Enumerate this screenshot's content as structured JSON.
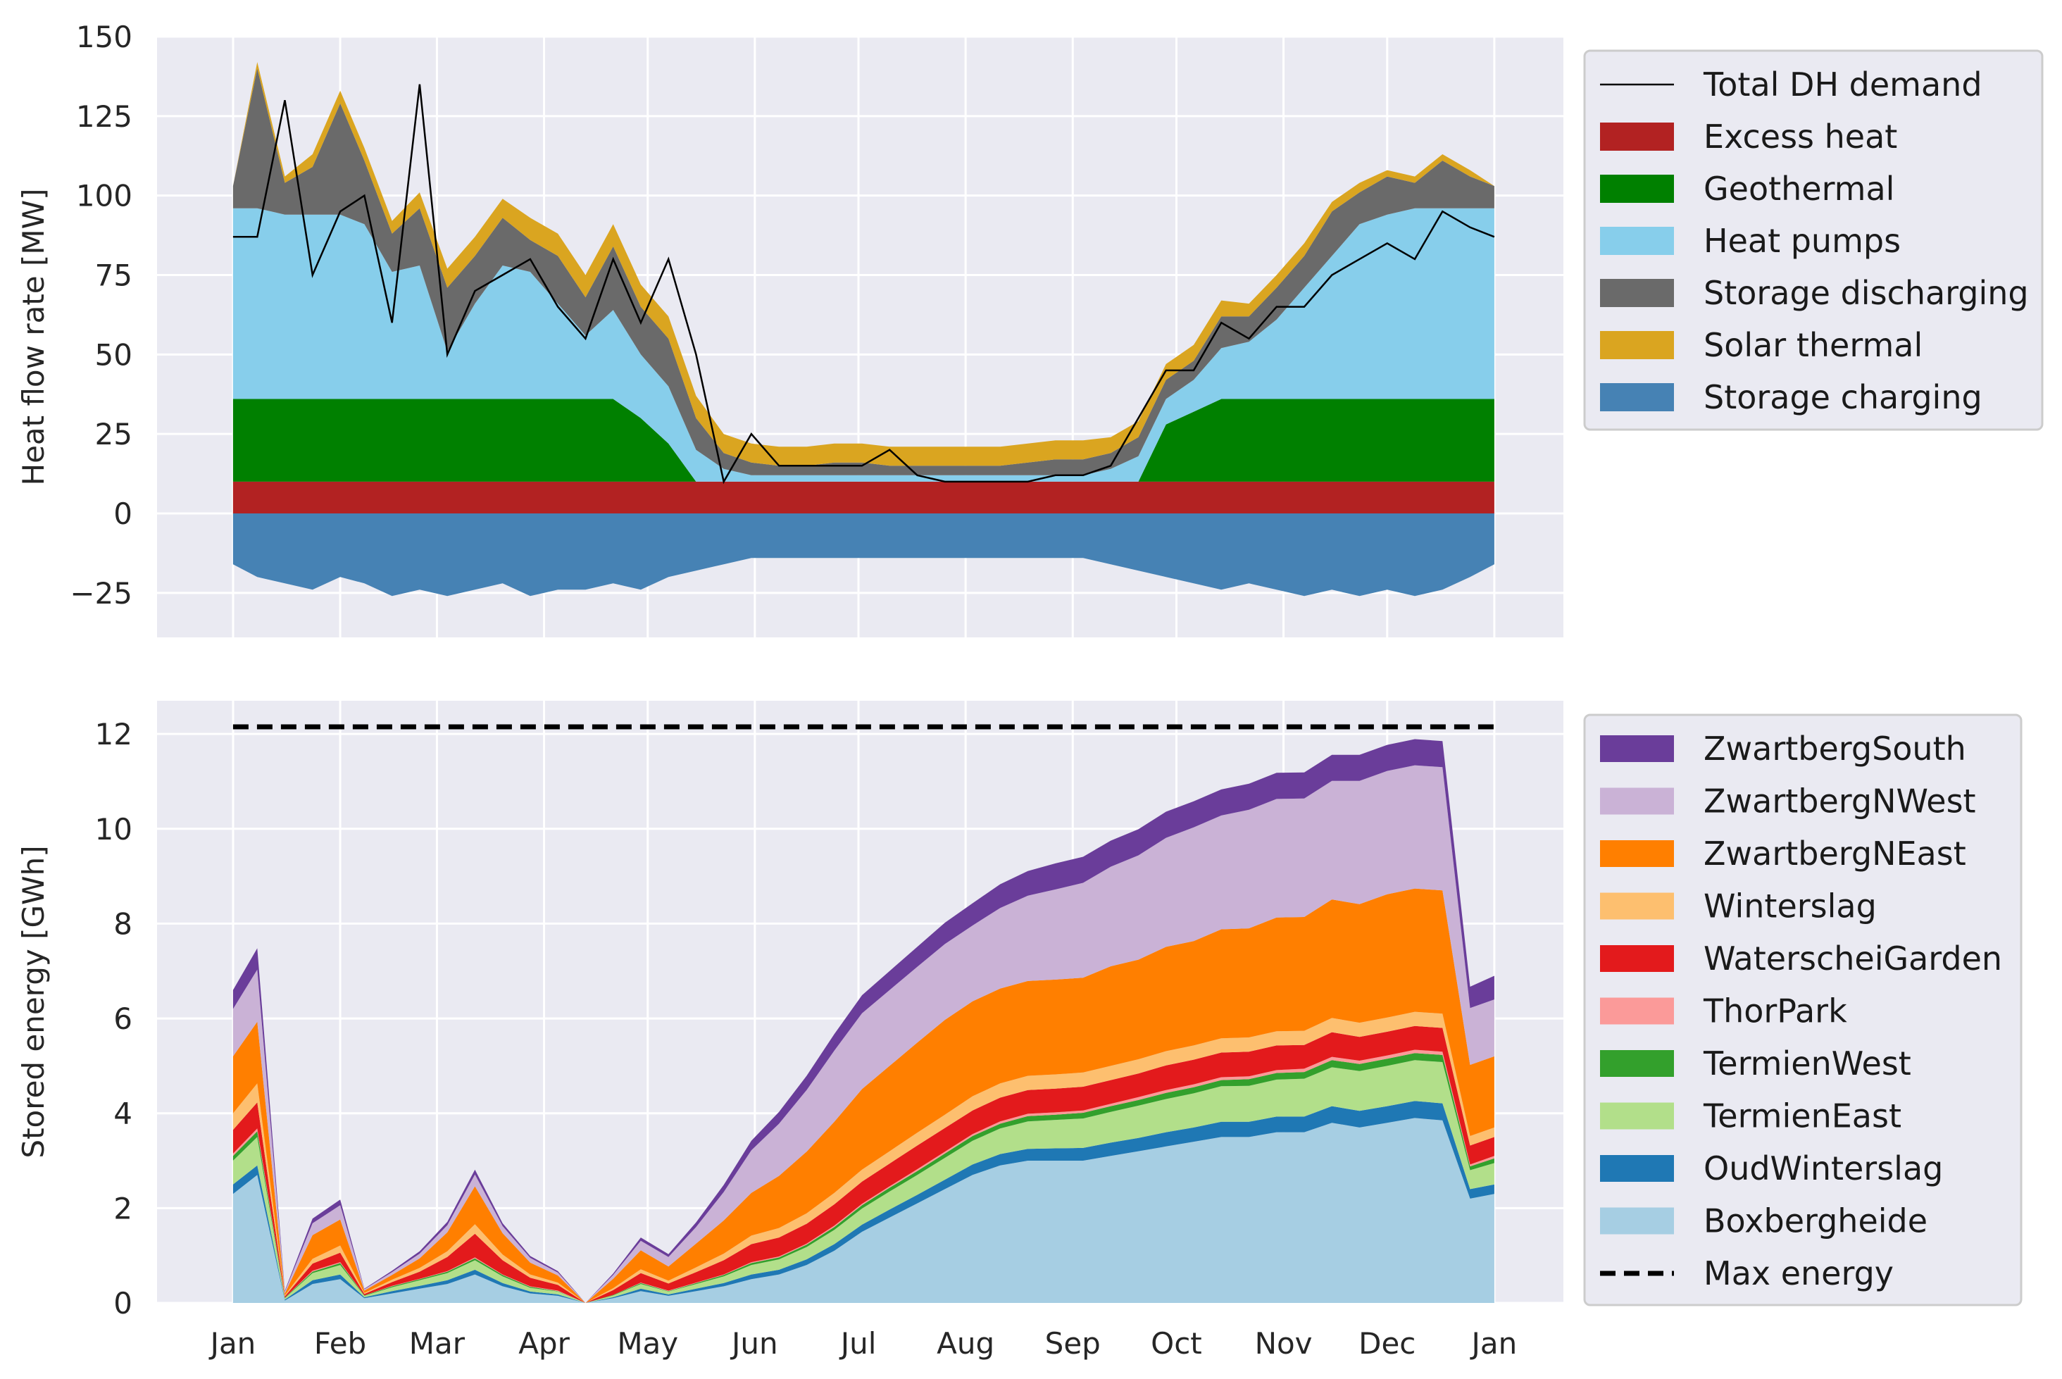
{
  "chart_data": [
    {
      "type": "area",
      "stacked": true,
      "ylabel": "Heat flow rate [MW]",
      "ylim": [
        -39,
        150
      ],
      "yticks": [
        -25,
        0,
        25,
        50,
        75,
        100,
        125,
        150
      ],
      "ytick_labels": [
        "−25",
        "0",
        "25",
        "50",
        "75",
        "100",
        "125",
        "150"
      ],
      "grid": true,
      "legend_placement": "outside-right",
      "x_unit": "day-of-year",
      "x": [
        0,
        7,
        15,
        23,
        31,
        38,
        46,
        54,
        62,
        70,
        78,
        86,
        94,
        102,
        110,
        118,
        126,
        134,
        142,
        150,
        158,
        166,
        174,
        182,
        190,
        198,
        206,
        214,
        222,
        230,
        238,
        246,
        254,
        262,
        270,
        278,
        286,
        294,
        302,
        310,
        318,
        326,
        334,
        342,
        350,
        358,
        365
      ],
      "series": [
        {
          "name": "Excess heat",
          "color": "#b22222",
          "values": [
            10,
            10,
            10,
            10,
            10,
            10,
            10,
            10,
            10,
            10,
            10,
            10,
            10,
            10,
            10,
            10,
            10,
            10,
            10,
            10,
            10,
            10,
            10,
            10,
            10,
            10,
            10,
            10,
            10,
            10,
            10,
            10,
            10,
            10,
            10,
            10,
            10,
            10,
            10,
            10,
            10,
            10,
            10,
            10,
            10,
            10,
            10
          ]
        },
        {
          "name": "Geothermal",
          "color": "#008000",
          "values": [
            26,
            26,
            26,
            26,
            26,
            26,
            26,
            26,
            26,
            26,
            26,
            26,
            26,
            26,
            26,
            20,
            12,
            0,
            0,
            0,
            0,
            0,
            0,
            0,
            0,
            0,
            0,
            0,
            0,
            0,
            0,
            0,
            0,
            0,
            18,
            22,
            26,
            26,
            26,
            26,
            26,
            26,
            26,
            26,
            26,
            26,
            26
          ]
        },
        {
          "name": "Heat pumps",
          "color": "#87ceeb",
          "values": [
            60,
            60,
            58,
            58,
            58,
            55,
            40,
            42,
            15,
            30,
            42,
            40,
            30,
            20,
            28,
            20,
            18,
            10,
            4,
            2,
            2,
            2,
            2,
            2,
            2,
            2,
            2,
            2,
            2,
            2,
            2,
            2,
            4,
            8,
            8,
            10,
            16,
            18,
            25,
            35,
            45,
            55,
            58,
            60,
            60,
            60,
            60
          ]
        },
        {
          "name": "Storage discharging",
          "color": "#6a6a6a",
          "values": [
            7,
            44,
            10,
            15,
            35,
            20,
            12,
            18,
            20,
            15,
            15,
            10,
            15,
            12,
            20,
            15,
            15,
            10,
            5,
            4,
            3,
            3,
            4,
            4,
            3,
            3,
            3,
            3,
            3,
            4,
            5,
            5,
            5,
            6,
            6,
            6,
            10,
            8,
            10,
            10,
            14,
            10,
            12,
            8,
            15,
            10,
            7
          ]
        },
        {
          "name": "Solar thermal",
          "color": "#daa520",
          "values": [
            0,
            2,
            2,
            4,
            4,
            4,
            4,
            5,
            6,
            6,
            6,
            7,
            7,
            7,
            7,
            7,
            7,
            7,
            6,
            6,
            6,
            6,
            6,
            6,
            6,
            6,
            6,
            6,
            6,
            6,
            6,
            6,
            5,
            5,
            5,
            5,
            5,
            4,
            4,
            4,
            3,
            3,
            2,
            2,
            2,
            2,
            0
          ]
        },
        {
          "name": "Storage charging",
          "color": "#4682b4",
          "values": [
            -16,
            -20,
            -22,
            -24,
            -20,
            -22,
            -26,
            -24,
            -26,
            -24,
            -22,
            -26,
            -24,
            -24,
            -22,
            -24,
            -20,
            -18,
            -16,
            -14,
            -14,
            -14,
            -14,
            -14,
            -14,
            -14,
            -14,
            -14,
            -14,
            -14,
            -14,
            -14,
            -16,
            -18,
            -20,
            -22,
            -24,
            -22,
            -24,
            -26,
            -24,
            -26,
            -24,
            -26,
            -24,
            -20,
            -16
          ]
        }
      ],
      "lines": [
        {
          "name": "Total DH demand",
          "color": "#000000",
          "values": [
            87,
            87,
            130,
            75,
            95,
            100,
            60,
            135,
            50,
            70,
            75,
            80,
            65,
            55,
            80,
            60,
            80,
            50,
            10,
            25,
            15,
            15,
            15,
            15,
            20,
            12,
            10,
            10,
            10,
            10,
            12,
            12,
            15,
            30,
            45,
            45,
            60,
            55,
            65,
            65,
            75,
            80,
            85,
            80,
            95,
            90,
            87
          ]
        }
      ],
      "legend": [
        "Total DH demand",
        "Excess heat",
        "Geothermal",
        "Heat pumps",
        "Storage discharging",
        "Solar thermal",
        "Storage charging"
      ]
    },
    {
      "type": "area",
      "stacked": true,
      "ylabel": "Stored energy [GWh]",
      "ylim": [
        0,
        12.7
      ],
      "yticks": [
        0,
        2,
        4,
        6,
        8,
        10,
        12
      ],
      "ytick_labels": [
        "0",
        "2",
        "4",
        "6",
        "8",
        "10",
        "12"
      ],
      "grid": true,
      "legend_placement": "outside-right",
      "x_unit": "day-of-year",
      "xticks": [
        0,
        31,
        59,
        90,
        120,
        151,
        181,
        212,
        243,
        273,
        304,
        334,
        365
      ],
      "xtick_labels": [
        "Jan",
        "Feb",
        "Mar",
        "Apr",
        "May",
        "Jun",
        "Jul",
        "Aug",
        "Sep",
        "Oct",
        "Nov",
        "Dec",
        "Jan"
      ],
      "x": [
        0,
        7,
        15,
        23,
        31,
        38,
        46,
        54,
        62,
        70,
        78,
        86,
        94,
        102,
        110,
        118,
        126,
        134,
        142,
        150,
        158,
        166,
        174,
        182,
        190,
        198,
        206,
        214,
        222,
        230,
        238,
        246,
        254,
        262,
        270,
        278,
        286,
        294,
        302,
        310,
        318,
        326,
        334,
        342,
        350,
        358,
        365
      ],
      "series": [
        {
          "name": "Boxbergheide",
          "color": "#a6cee3",
          "values": [
            2.3,
            2.7,
            0.05,
            0.4,
            0.5,
            0.1,
            0.2,
            0.3,
            0.4,
            0.6,
            0.35,
            0.2,
            0.15,
            0.0,
            0.1,
            0.25,
            0.15,
            0.25,
            0.35,
            0.5,
            0.6,
            0.8,
            1.1,
            1.5,
            1.8,
            2.1,
            2.4,
            2.7,
            2.9,
            3.0,
            3.0,
            3.0,
            3.1,
            3.2,
            3.3,
            3.4,
            3.5,
            3.5,
            3.6,
            3.6,
            3.8,
            3.7,
            3.8,
            3.9,
            3.85,
            2.2,
            2.3
          ]
        },
        {
          "name": "OudWinterslag",
          "color": "#1f78b4",
          "values": [
            0.2,
            0.2,
            0.02,
            0.08,
            0.1,
            0.02,
            0.05,
            0.06,
            0.08,
            0.1,
            0.07,
            0.04,
            0.03,
            0.0,
            0.02,
            0.05,
            0.03,
            0.05,
            0.07,
            0.1,
            0.1,
            0.12,
            0.14,
            0.15,
            0.17,
            0.18,
            0.2,
            0.22,
            0.24,
            0.25,
            0.26,
            0.27,
            0.28,
            0.28,
            0.3,
            0.3,
            0.32,
            0.32,
            0.33,
            0.33,
            0.35,
            0.35,
            0.35,
            0.36,
            0.36,
            0.2,
            0.2
          ]
        },
        {
          "name": "TermienEast",
          "color": "#b2df8a",
          "values": [
            0.5,
            0.6,
            0.03,
            0.15,
            0.2,
            0.03,
            0.08,
            0.12,
            0.15,
            0.2,
            0.14,
            0.08,
            0.06,
            0.0,
            0.04,
            0.1,
            0.06,
            0.1,
            0.14,
            0.2,
            0.22,
            0.26,
            0.3,
            0.34,
            0.38,
            0.42,
            0.46,
            0.5,
            0.54,
            0.58,
            0.6,
            0.62,
            0.65,
            0.68,
            0.7,
            0.72,
            0.75,
            0.76,
            0.78,
            0.8,
            0.82,
            0.84,
            0.85,
            0.86,
            0.87,
            0.4,
            0.45
          ]
        },
        {
          "name": "TermienWest",
          "color": "#33a02c",
          "values": [
            0.1,
            0.12,
            0.01,
            0.03,
            0.04,
            0.01,
            0.02,
            0.02,
            0.03,
            0.04,
            0.03,
            0.02,
            0.01,
            0.0,
            0.01,
            0.02,
            0.01,
            0.02,
            0.03,
            0.04,
            0.04,
            0.05,
            0.06,
            0.07,
            0.08,
            0.08,
            0.09,
            0.1,
            0.1,
            0.11,
            0.11,
            0.12,
            0.12,
            0.12,
            0.13,
            0.13,
            0.13,
            0.14,
            0.14,
            0.14,
            0.15,
            0.15,
            0.15,
            0.15,
            0.15,
            0.08,
            0.1
          ]
        },
        {
          "name": "ThorPark",
          "color": "#fb9a99",
          "values": [
            0.05,
            0.06,
            0.0,
            0.02,
            0.02,
            0.0,
            0.01,
            0.01,
            0.01,
            0.02,
            0.01,
            0.01,
            0.01,
            0.0,
            0.0,
            0.01,
            0.01,
            0.01,
            0.01,
            0.02,
            0.02,
            0.02,
            0.03,
            0.03,
            0.03,
            0.04,
            0.04,
            0.04,
            0.05,
            0.05,
            0.05,
            0.05,
            0.05,
            0.06,
            0.06,
            0.06,
            0.06,
            0.06,
            0.06,
            0.07,
            0.07,
            0.07,
            0.07,
            0.07,
            0.07,
            0.04,
            0.05
          ]
        },
        {
          "name": "WaterscheiGarden",
          "color": "#e31a1c",
          "values": [
            0.5,
            0.55,
            0.03,
            0.15,
            0.2,
            0.03,
            0.08,
            0.15,
            0.3,
            0.5,
            0.3,
            0.18,
            0.12,
            0.0,
            0.1,
            0.2,
            0.15,
            0.22,
            0.3,
            0.38,
            0.4,
            0.42,
            0.45,
            0.47,
            0.48,
            0.5,
            0.5,
            0.5,
            0.5,
            0.5,
            0.5,
            0.5,
            0.5,
            0.5,
            0.52,
            0.52,
            0.52,
            0.52,
            0.52,
            0.5,
            0.52,
            0.5,
            0.5,
            0.5,
            0.5,
            0.4,
            0.4
          ]
        },
        {
          "name": "Winterslag",
          "color": "#fdbf6f",
          "values": [
            0.35,
            0.4,
            0.02,
            0.1,
            0.15,
            0.02,
            0.05,
            0.08,
            0.12,
            0.2,
            0.12,
            0.07,
            0.05,
            0.0,
            0.04,
            0.08,
            0.06,
            0.1,
            0.14,
            0.18,
            0.2,
            0.22,
            0.24,
            0.25,
            0.26,
            0.27,
            0.28,
            0.3,
            0.3,
            0.3,
            0.3,
            0.3,
            0.3,
            0.3,
            0.3,
            0.3,
            0.3,
            0.3,
            0.3,
            0.3,
            0.3,
            0.3,
            0.3,
            0.3,
            0.3,
            0.2,
            0.2
          ]
        },
        {
          "name": "ZwartbergNEast",
          "color": "#ff7f00",
          "values": [
            1.2,
            1.3,
            0.04,
            0.5,
            0.55,
            0.05,
            0.1,
            0.2,
            0.4,
            0.8,
            0.45,
            0.25,
            0.15,
            0.0,
            0.2,
            0.4,
            0.3,
            0.5,
            0.7,
            0.9,
            1.1,
            1.3,
            1.5,
            1.7,
            1.8,
            1.9,
            2.0,
            2.0,
            2.0,
            2.0,
            2.0,
            2.0,
            2.1,
            2.1,
            2.2,
            2.2,
            2.3,
            2.3,
            2.4,
            2.4,
            2.5,
            2.5,
            2.6,
            2.6,
            2.6,
            1.5,
            1.5
          ]
        },
        {
          "name": "ZwartbergNWest",
          "color": "#cab2d6",
          "values": [
            1.0,
            1.1,
            0.04,
            0.25,
            0.3,
            0.03,
            0.06,
            0.1,
            0.15,
            0.25,
            0.15,
            0.1,
            0.06,
            0.0,
            0.08,
            0.2,
            0.2,
            0.35,
            0.6,
            0.9,
            1.1,
            1.3,
            1.5,
            1.6,
            1.6,
            1.6,
            1.6,
            1.6,
            1.7,
            1.8,
            1.9,
            2.0,
            2.1,
            2.2,
            2.3,
            2.4,
            2.4,
            2.5,
            2.5,
            2.5,
            2.5,
            2.6,
            2.6,
            2.6,
            2.6,
            1.2,
            1.2
          ]
        },
        {
          "name": "ZwartbergSouth",
          "color": "#6a3d9a",
          "values": [
            0.4,
            0.45,
            0.02,
            0.1,
            0.12,
            0.01,
            0.03,
            0.05,
            0.07,
            0.1,
            0.06,
            0.04,
            0.03,
            0.0,
            0.03,
            0.07,
            0.06,
            0.1,
            0.15,
            0.2,
            0.25,
            0.3,
            0.35,
            0.38,
            0.4,
            0.42,
            0.45,
            0.47,
            0.5,
            0.52,
            0.55,
            0.55,
            0.55,
            0.55,
            0.55,
            0.55,
            0.55,
            0.55,
            0.55,
            0.55,
            0.55,
            0.55,
            0.55,
            0.55,
            0.55,
            0.45,
            0.5
          ]
        }
      ],
      "lines": [
        {
          "name": "Max energy",
          "color": "#000000",
          "dashed": true,
          "values_x": [
            0,
            365
          ],
          "values": [
            12.15,
            12.15
          ]
        }
      ],
      "legend": [
        "ZwartbergSouth",
        "ZwartbergNWest",
        "ZwartbergNEast",
        "Winterslag",
        "WaterscheiGarden",
        "ThorPark",
        "TermienWest",
        "TermienEast",
        "OudWinterslag",
        "Boxbergheide",
        "Max energy"
      ]
    }
  ]
}
